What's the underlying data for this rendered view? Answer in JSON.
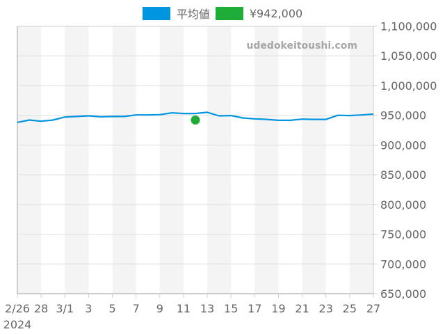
{
  "legend": [
    {
      "label": "平均値",
      "color": "#0095E0"
    },
    {
      "label": "¥942,000",
      "color": "#1FAD3A"
    }
  ],
  "watermark": "udedokeitoushi.com",
  "chart_data": {
    "type": "line",
    "title": "",
    "xlabel": "",
    "ylabel": "",
    "ylim": [
      650000,
      1100000
    ],
    "y_ticks": [
      650000,
      700000,
      750000,
      800000,
      850000,
      900000,
      950000,
      1000000,
      1050000,
      1100000
    ],
    "y_tick_labels": [
      "650,000",
      "700,000",
      "750,000",
      "800,000",
      "850,000",
      "900,000",
      "950,000",
      "1,000,000",
      "1,050,000",
      "1,100,000"
    ],
    "x_tick_labels": [
      "2/26",
      "28",
      "3/1",
      "3",
      "5",
      "7",
      "9",
      "11",
      "13",
      "15",
      "17",
      "19",
      "21",
      "23",
      "25",
      "27"
    ],
    "x_year_label": "2024",
    "x": [
      "2/26",
      "2/27",
      "2/28",
      "2/29",
      "3/1",
      "3/2",
      "3/3",
      "3/4",
      "3/5",
      "3/6",
      "3/7",
      "3/8",
      "3/9",
      "3/10",
      "3/11",
      "3/12",
      "3/13",
      "3/14",
      "3/15",
      "3/16",
      "3/17",
      "3/18",
      "3/19",
      "3/20",
      "3/21",
      "3/22",
      "3/23",
      "3/24",
      "3/25",
      "3/26",
      "3/27"
    ],
    "series": [
      {
        "name": "平均値",
        "color": "#0095E0",
        "values": [
          938000,
          942000,
          940000,
          942000,
          947000,
          948000,
          949000,
          947500,
          948000,
          948000,
          950500,
          950500,
          951000,
          954000,
          953000,
          953000,
          955000,
          949000,
          949500,
          945500,
          944000,
          943000,
          941500,
          941500,
          943500,
          943000,
          943000,
          950000,
          949500,
          950500,
          952000
        ]
      },
      {
        "name": "¥942,000",
        "color": "#1FAD3A",
        "type": "scatter",
        "points": [
          {
            "x": "3/12",
            "y": 942000
          }
        ]
      }
    ],
    "grid": true,
    "alternating_bands": true,
    "legend_position": "top"
  }
}
